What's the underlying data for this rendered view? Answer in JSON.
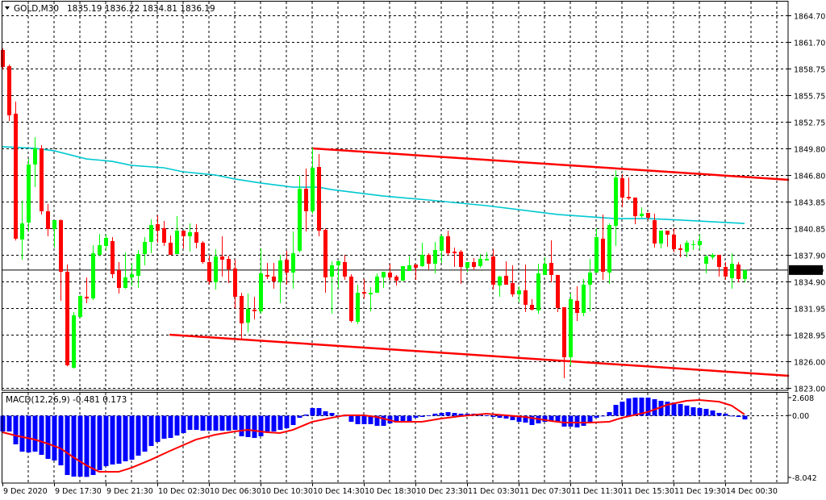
{
  "header": {
    "symbol": "GOLD,M30",
    "ohlc": "1835.19 1836.22 1834.81 1836.19",
    "menu_icon": "triangle-down-icon"
  },
  "macd_label": "MACD(12,26,9) -0.481 0.173",
  "colors": {
    "bull": "#00ff00",
    "bear": "#ff0000",
    "ma": "#00c8d0",
    "trendline": "#ff0000",
    "histogram": "#0000ff",
    "signal": "#ff0000",
    "grid": "#000000"
  },
  "chart_data": [
    {
      "type": "candlestick",
      "title": "GOLD,M30",
      "ohlc_readout": [
        1835.19,
        1836.22,
        1834.81,
        1836.19
      ],
      "current_price": 1836.19,
      "current_price_label": "1836.19",
      "ylim": [
        1823.0,
        1864.7
      ],
      "y_ticks": [
        "1864.70",
        "1861.70",
        "1858.75",
        "1855.75",
        "1852.75",
        "1849.80",
        "1846.80",
        "1843.85",
        "1840.85",
        "1837.90",
        "1834.90",
        "1831.95",
        "1828.95",
        "1826.00",
        "1823.00"
      ],
      "x_ticks": [
        {
          "index": 0,
          "label": "9 Dec 2020"
        },
        {
          "index": 8,
          "label": "9 Dec 17:30"
        },
        {
          "index": 16,
          "label": "9 Dec 21:30"
        },
        {
          "index": 24,
          "label": "10 Dec 02:30"
        },
        {
          "index": 32,
          "label": "10 Dec 06:30"
        },
        {
          "index": 40,
          "label": "10 Dec 10:30"
        },
        {
          "index": 48,
          "label": "10 Dec 14:30"
        },
        {
          "index": 56,
          "label": "10 Dec 18:30"
        },
        {
          "index": 64,
          "label": "10 Dec 23:30"
        },
        {
          "index": 72,
          "label": "11 Dec 03:30"
        },
        {
          "index": 80,
          "label": "11 Dec 07:30"
        },
        {
          "index": 88,
          "label": "11 Dec 11:30"
        },
        {
          "index": 96,
          "label": "11 Dec 15:30"
        },
        {
          "index": 104,
          "label": "11 Dec 19:30"
        },
        {
          "index": 112,
          "label": "14 Dec 00:30"
        }
      ],
      "grid": true,
      "candles_ohlc": [
        [
          1860.82,
          1861.0,
          1858.65,
          1858.92
        ],
        [
          1859.01,
          1859.19,
          1852.88,
          1853.51
        ],
        [
          1853.69,
          1855.04,
          1839.5,
          1839.7
        ],
        [
          1839.61,
          1843.94,
          1837.35,
          1841.41
        ],
        [
          1841.5,
          1848.63,
          1840.51,
          1848.0
        ],
        [
          1848.0,
          1851.07,
          1845.47,
          1849.81
        ],
        [
          1849.81,
          1850.17,
          1842.41,
          1842.77
        ],
        [
          1842.77,
          1843.58,
          1839.97,
          1840.78
        ],
        [
          1840.78,
          1841.77,
          1838.71,
          1841.77
        ],
        [
          1841.77,
          1841.86,
          1832.75,
          1836.0
        ],
        [
          1836.0,
          1836.81,
          1825.4,
          1825.53
        ],
        [
          1825.26,
          1831.48,
          1825.17,
          1831.12
        ],
        [
          1830.94,
          1833.38,
          1830.85,
          1833.29
        ],
        [
          1833.2,
          1835.37,
          1832.48,
          1833.02
        ],
        [
          1833.02,
          1838.98,
          1832.84,
          1838.07
        ],
        [
          1837.89,
          1840.24,
          1837.71,
          1838.98
        ],
        [
          1838.89,
          1840.15,
          1838.44,
          1839.79
        ],
        [
          1839.43,
          1839.88,
          1835.28,
          1835.73
        ],
        [
          1836.18,
          1837.08,
          1833.56,
          1834.19
        ],
        [
          1834.19,
          1838.16,
          1834.1,
          1835.37
        ],
        [
          1835.37,
          1836.99,
          1834.37,
          1835.73
        ],
        [
          1835.55,
          1838.44,
          1834.19,
          1837.98
        ],
        [
          1837.98,
          1839.88,
          1836.72,
          1839.34
        ],
        [
          1839.34,
          1841.86,
          1838.07,
          1841.23
        ],
        [
          1841.32,
          1842.32,
          1839.25,
          1840.6
        ],
        [
          1840.87,
          1841.68,
          1838.89,
          1839.25
        ],
        [
          1839.25,
          1840.06,
          1837.89,
          1837.89
        ],
        [
          1837.98,
          1842.22,
          1837.98,
          1840.6
        ],
        [
          1840.6,
          1840.6,
          1838.62,
          1839.97
        ],
        [
          1839.97,
          1841.41,
          1838.25,
          1840.42
        ],
        [
          1840.42,
          1841.32,
          1838.62,
          1839.25
        ],
        [
          1839.25,
          1839.43,
          1836.9,
          1837.08
        ],
        [
          1837.08,
          1837.8,
          1834.55,
          1834.91
        ],
        [
          1834.82,
          1838.53,
          1834.01,
          1837.71
        ],
        [
          1837.71,
          1839.97,
          1835.46,
          1837.35
        ],
        [
          1837.44,
          1837.8,
          1834.73,
          1836.27
        ],
        [
          1836.36,
          1837.35,
          1831.85,
          1833.2
        ],
        [
          1833.29,
          1833.65,
          1828.51,
          1830.22
        ],
        [
          1830.31,
          1833.56,
          1829.23,
          1831.85
        ],
        [
          1831.76,
          1833.2,
          1830.67,
          1831.58
        ],
        [
          1831.58,
          1838.62,
          1831.3,
          1835.82
        ],
        [
          1835.64,
          1836.99,
          1835.19,
          1835.46
        ],
        [
          1835.46,
          1836.99,
          1834.1,
          1834.91
        ],
        [
          1834.82,
          1837.89,
          1832.48,
          1837.26
        ],
        [
          1837.35,
          1838.35,
          1834.55,
          1835.91
        ],
        [
          1835.91,
          1840.51,
          1834.1,
          1838.07
        ],
        [
          1838.35,
          1846.74,
          1838.16,
          1845.29
        ],
        [
          1845.29,
          1847.55,
          1840.51,
          1842.77
        ],
        [
          1842.77,
          1849.9,
          1842.5,
          1847.64
        ],
        [
          1847.73,
          1849.18,
          1839.97,
          1840.6
        ],
        [
          1840.69,
          1840.87,
          1833.65,
          1835.37
        ],
        [
          1835.46,
          1837.17,
          1831.3,
          1836.72
        ],
        [
          1836.72,
          1837.26,
          1834.1,
          1837.17
        ],
        [
          1837.08,
          1837.89,
          1835.1,
          1835.46
        ],
        [
          1835.46,
          1835.73,
          1830.31,
          1830.49
        ],
        [
          1830.4,
          1834.55,
          1830.13,
          1833.65
        ],
        [
          1833.74,
          1835.19,
          1833.02,
          1833.56
        ],
        [
          1833.47,
          1834.28,
          1831.58,
          1833.65
        ],
        [
          1833.65,
          1835.82,
          1833.65,
          1835.46
        ],
        [
          1835.37,
          1836.0,
          1834.19,
          1836.0
        ],
        [
          1835.91,
          1836.9,
          1835.0,
          1835.37
        ],
        [
          1835.46,
          1835.64,
          1834.46,
          1835.0
        ],
        [
          1835.0,
          1836.63,
          1835.0,
          1836.63
        ],
        [
          1836.09,
          1837.71,
          1836.09,
          1836.72
        ],
        [
          1836.81,
          1836.81,
          1835.1,
          1836.45
        ],
        [
          1836.63,
          1839.25,
          1836.54,
          1837.89
        ],
        [
          1837.89,
          1838.07,
          1836.27,
          1836.9
        ],
        [
          1836.9,
          1839.34,
          1835.82,
          1838.44
        ],
        [
          1838.35,
          1840.15,
          1836.99,
          1839.97
        ],
        [
          1839.97,
          1840.6,
          1837.8,
          1838.07
        ],
        [
          1838.25,
          1838.71,
          1836.54,
          1838.07
        ],
        [
          1838.25,
          1838.44,
          1834.64,
          1836.54
        ],
        [
          1836.45,
          1837.08,
          1836.0,
          1837.08
        ],
        [
          1837.08,
          1837.53,
          1836.18,
          1836.54
        ],
        [
          1836.63,
          1837.98,
          1836.45,
          1837.44
        ],
        [
          1837.26,
          1838.16,
          1837.26,
          1837.44
        ],
        [
          1837.71,
          1838.53,
          1834.01,
          1834.55
        ],
        [
          1834.46,
          1835.55,
          1833.2,
          1835.46
        ],
        [
          1835.55,
          1837.17,
          1834.55,
          1834.55
        ],
        [
          1834.73,
          1836.72,
          1833.2,
          1833.47
        ],
        [
          1833.47,
          1834.37,
          1832.57,
          1833.92
        ],
        [
          1833.92,
          1836.81,
          1831.48,
          1832.3
        ],
        [
          1832.3,
          1832.93,
          1831.67,
          1831.76
        ],
        [
          1831.67,
          1836.9,
          1831.3,
          1835.82
        ],
        [
          1835.64,
          1837.62,
          1835.64,
          1836.9
        ],
        [
          1836.99,
          1839.52,
          1834.82,
          1835.64
        ],
        [
          1835.64,
          1835.64,
          1831.48,
          1831.94
        ],
        [
          1832.03,
          1832.03,
          1824.08,
          1826.43
        ],
        [
          1826.43,
          1833.56,
          1825.53,
          1832.93
        ],
        [
          1832.75,
          1834.37,
          1830.49,
          1831.39
        ],
        [
          1831.39,
          1835.19,
          1831.03,
          1834.55
        ],
        [
          1834.55,
          1837.44,
          1831.58,
          1835.91
        ],
        [
          1835.91,
          1840.87,
          1835.91,
          1839.88
        ],
        [
          1839.7,
          1842.41,
          1835.1,
          1836.0
        ],
        [
          1835.91,
          1841.41,
          1834.64,
          1841.23
        ],
        [
          1841.14,
          1847.37,
          1838.89,
          1846.56
        ],
        [
          1846.47,
          1846.92,
          1843.22,
          1844.3
        ],
        [
          1844.39,
          1846.56,
          1844.03,
          1844.21
        ],
        [
          1844.3,
          1844.3,
          1841.32,
          1842.22
        ],
        [
          1842.22,
          1843.22,
          1842.04,
          1842.5
        ],
        [
          1842.59,
          1842.59,
          1841.77,
          1842.04
        ],
        [
          1841.77,
          1842.5,
          1838.71,
          1839.16
        ],
        [
          1839.16,
          1840.6,
          1838.62,
          1840.6
        ],
        [
          1840.6,
          1840.6,
          1838.8,
          1840.15
        ],
        [
          1840.15,
          1840.87,
          1838.16,
          1838.53
        ],
        [
          1838.62,
          1839.07,
          1837.62,
          1838.44
        ],
        [
          1838.25,
          1839.52,
          1837.62,
          1839.25
        ],
        [
          1838.98,
          1839.52,
          1838.44,
          1839.07
        ],
        [
          1838.98,
          1840.15,
          1838.44,
          1839.43
        ],
        [
          1836.9,
          1837.89,
          1835.82,
          1837.71
        ],
        [
          1837.62,
          1838.07,
          1837.35,
          1837.89
        ],
        [
          1837.89,
          1837.89,
          1835.46,
          1836.54
        ],
        [
          1836.54,
          1837.08,
          1835.1,
          1835.46
        ],
        [
          1835.28,
          1838.07,
          1834.1,
          1836.9
        ],
        [
          1836.81,
          1837.08,
          1834.82,
          1835.19
        ],
        [
          1835.19,
          1836.22,
          1834.81,
          1836.19
        ]
      ],
      "moving_average": [
        [
          0,
          1849.99
        ],
        [
          5,
          1849.81
        ],
        [
          8,
          1849.54
        ],
        [
          13,
          1848.63
        ],
        [
          17,
          1848.36
        ],
        [
          20,
          1847.91
        ],
        [
          25,
          1847.64
        ],
        [
          28,
          1847.19
        ],
        [
          33,
          1846.83
        ],
        [
          36,
          1846.38
        ],
        [
          40,
          1845.93
        ],
        [
          45,
          1845.47
        ],
        [
          49,
          1845.47
        ],
        [
          51,
          1845.2
        ],
        [
          59,
          1844.48
        ],
        [
          66,
          1844.03
        ],
        [
          75,
          1843.4
        ],
        [
          86,
          1842.41
        ],
        [
          95,
          1841.95
        ],
        [
          100,
          1841.95
        ],
        [
          103,
          1841.86
        ],
        [
          115,
          1841.41
        ]
      ],
      "trendlines": [
        {
          "name": "upper",
          "from": [
            48,
            1849.81
          ],
          "to": [
            121.9,
            1846.29
          ]
        },
        {
          "name": "lower",
          "from": [
            25.9,
            1828.96
          ],
          "to": [
            121.9,
            1824.35
          ]
        }
      ]
    },
    {
      "type": "bar+line",
      "title": "MACD(12,26,9)",
      "values_readout": [
        -0.481,
        0.173
      ],
      "y_ticks": [
        "2.608",
        "0.00",
        "-8.042"
      ],
      "histogram": [
        -2.07,
        -2.07,
        -3.76,
        -4.72,
        -4.82,
        -4.72,
        -5.14,
        -5.67,
        -5.88,
        -6.52,
        -7.79,
        -8.0,
        -8.0,
        -8.04,
        -7.79,
        -7.16,
        -6.63,
        -6.41,
        -6.31,
        -5.99,
        -5.78,
        -5.25,
        -4.72,
        -3.98,
        -3.45,
        -3.02,
        -2.92,
        -2.6,
        -2.28,
        -1.86,
        -1.86,
        -1.96,
        -1.96,
        -1.96,
        -1.96,
        -1.96,
        -1.86,
        -2.7,
        -2.81,
        -2.92,
        -2.7,
        -2.07,
        -2.07,
        -1.86,
        -1.64,
        -1.22,
        -0.27,
        0.16,
        1.01,
        1.01,
        0.58,
        0.37,
        0.05,
        -0.05,
        -0.8,
        -1.11,
        -1.11,
        -1.11,
        -1.33,
        -1.33,
        -1.01,
        -0.9,
        -0.69,
        -0.69,
        -0.27,
        -0.16,
        0.05,
        0.27,
        0.37,
        0.48,
        0.37,
        0.27,
        0.27,
        0.27,
        0.27,
        0.05,
        -0.16,
        -0.27,
        -0.37,
        -0.58,
        -0.8,
        -0.9,
        -1.22,
        -1.01,
        -0.8,
        -0.69,
        -0.8,
        -1.43,
        -1.43,
        -1.54,
        -1.33,
        -0.9,
        -0.27,
        -0.05,
        0.48,
        1.43,
        1.85,
        2.28,
        2.38,
        2.38,
        2.38,
        2.17,
        1.96,
        1.85,
        1.75,
        1.54,
        1.33,
        1.11,
        1.01,
        0.9,
        0.69,
        0.37,
        0.27,
        -0.05,
        -0.16,
        -0.481
      ],
      "signal": [
        [
          0,
          -2.17
        ],
        [
          2,
          -2.6
        ],
        [
          5,
          -3.13
        ],
        [
          7,
          -3.66
        ],
        [
          9,
          -4.29
        ],
        [
          11,
          -5.46
        ],
        [
          13,
          -6.52
        ],
        [
          15,
          -7.37
        ],
        [
          18,
          -7.37
        ],
        [
          20,
          -6.84
        ],
        [
          23,
          -5.78
        ],
        [
          26,
          -4.61
        ],
        [
          30,
          -3.13
        ],
        [
          33,
          -2.49
        ],
        [
          36,
          -2.07
        ],
        [
          38,
          -1.86
        ],
        [
          41,
          -2.17
        ],
        [
          43,
          -2.28
        ],
        [
          45,
          -1.86
        ],
        [
          48,
          -0.8
        ],
        [
          51,
          -0.27
        ],
        [
          53,
          0.05
        ],
        [
          56,
          0.05
        ],
        [
          58,
          -0.16
        ],
        [
          61,
          -0.8
        ],
        [
          65,
          -0.8
        ],
        [
          68,
          -0.37
        ],
        [
          71,
          -0.05
        ],
        [
          75,
          0.27
        ],
        [
          78,
          0.05
        ],
        [
          81,
          -0.16
        ],
        [
          85,
          -0.69
        ],
        [
          87,
          -0.9
        ],
        [
          91,
          -0.9
        ],
        [
          94,
          -0.8
        ],
        [
          96,
          -0.27
        ],
        [
          100,
          0.48
        ],
        [
          103,
          1.43
        ],
        [
          106,
          1.96
        ],
        [
          108,
          2.07
        ],
        [
          111,
          1.85
        ],
        [
          113,
          1.33
        ],
        [
          115,
          0.173
        ]
      ]
    }
  ]
}
